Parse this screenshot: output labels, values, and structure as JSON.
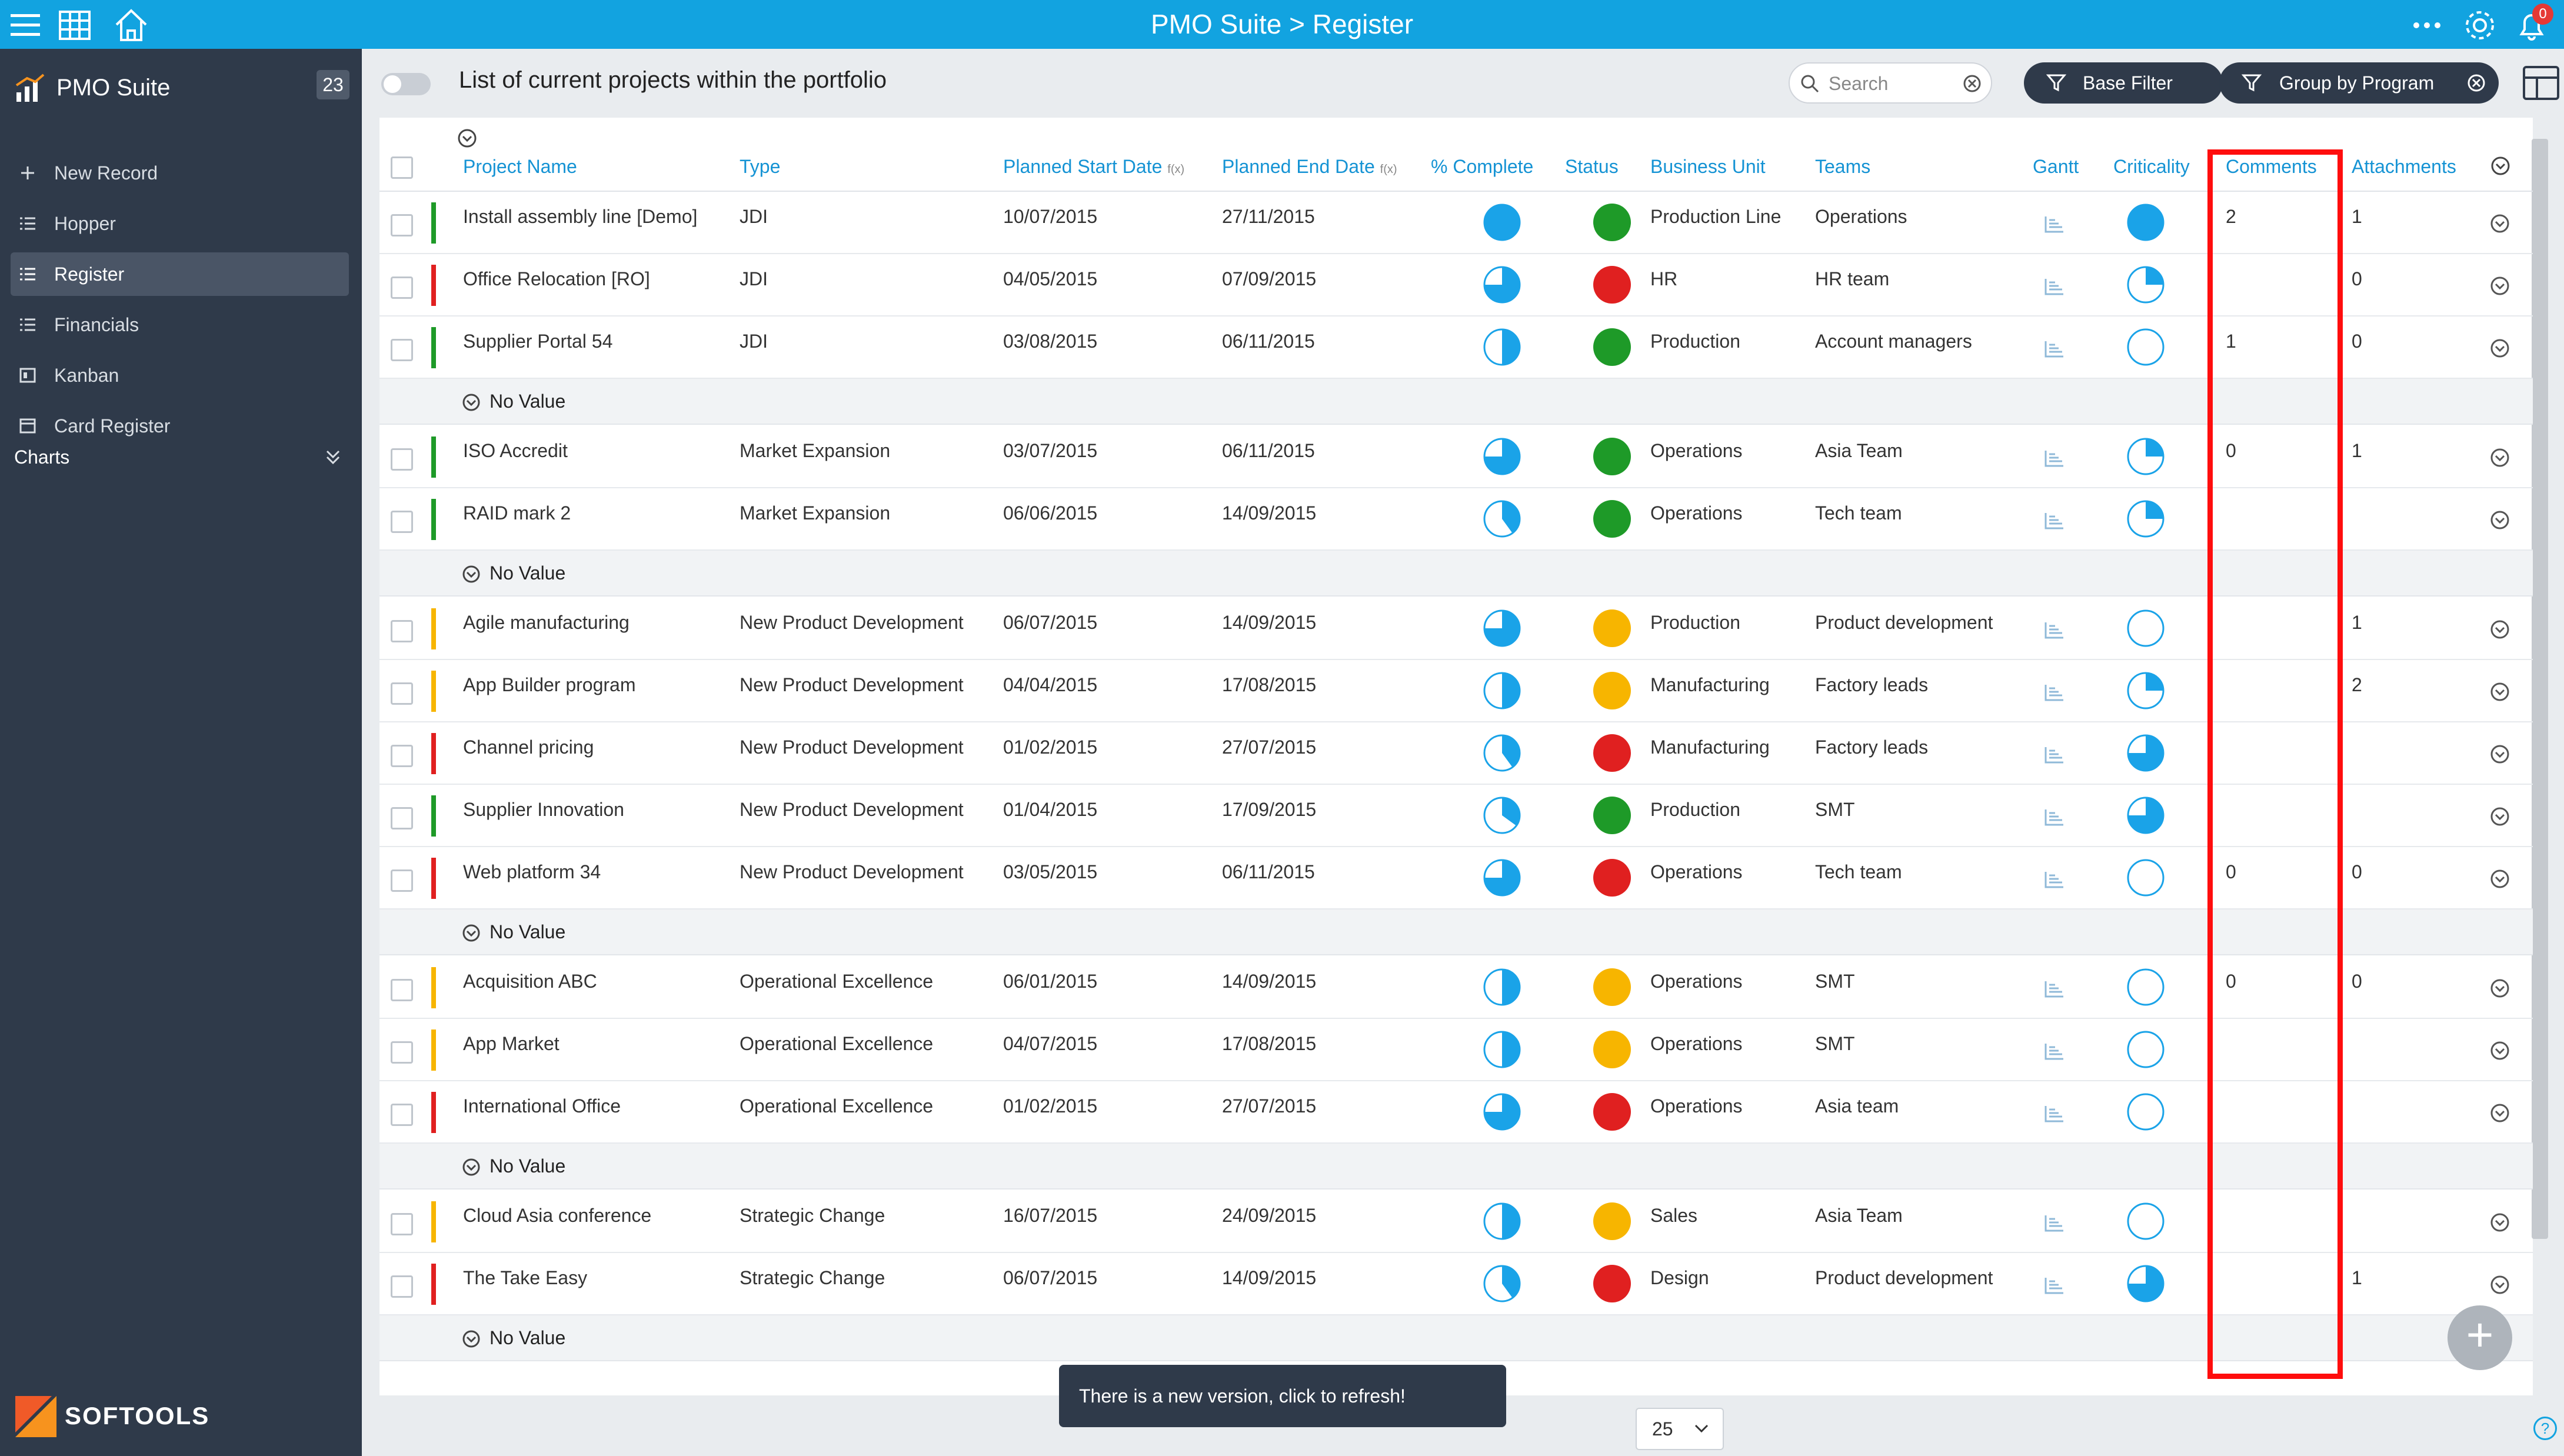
{
  "topbar": {
    "title": "PMO Suite > Register",
    "notifications": "0"
  },
  "sidebar": {
    "app_name": "PMO Suite",
    "count": "23",
    "items": [
      {
        "label": "New Record",
        "icon": "plus-icon"
      },
      {
        "label": "Hopper",
        "icon": "list-icon"
      },
      {
        "label": "Register",
        "icon": "list-icon",
        "active": true
      },
      {
        "label": "Financials",
        "icon": "list-icon"
      },
      {
        "label": "Kanban",
        "icon": "kanban-icon"
      },
      {
        "label": "Card Register",
        "icon": "card-icon"
      }
    ],
    "charts_label": "Charts",
    "brand": "SOFTOOLS"
  },
  "main": {
    "title": "List of current projects within the portfolio",
    "search_placeholder": "Search",
    "base_filter": "Base Filter",
    "group_by": "Group by Program"
  },
  "columns": {
    "project_name": "Project Name",
    "type": "Type",
    "start": "Planned Start Date",
    "end": "Planned End Date",
    "fx": "f(x)",
    "complete": "% Complete",
    "status": "Status",
    "unit": "Business Unit",
    "teams": "Teams",
    "gantt": "Gantt",
    "criticality": "Criticality",
    "comments": "Comments",
    "attachments": "Attachments"
  },
  "group_label": "No Value",
  "colors": {
    "green": "#1e9a28",
    "red": "#e02020",
    "amber": "#f7b500",
    "blue": "#1aa3e8"
  },
  "rows": [
    {
      "name": "Install assembly line [Demo]",
      "type": "JDI",
      "start": "10/07/2015",
      "end": "27/11/2015",
      "bar": "green",
      "complete": 1.0,
      "status": "green",
      "unit": "Production Line",
      "teams": "Operations",
      "crit": 1.0,
      "comments": "2",
      "attachments": "1"
    },
    {
      "name": "Office Relocation [RO]",
      "type": "JDI",
      "start": "04/05/2015",
      "end": "07/09/2015",
      "bar": "red",
      "complete": 0.75,
      "status": "red",
      "unit": "HR",
      "teams": "HR team",
      "crit": 0.25,
      "comments": "",
      "attachments": "0"
    },
    {
      "name": "Supplier Portal 54",
      "type": "JDI",
      "start": "03/08/2015",
      "end": "06/11/2015",
      "bar": "green",
      "complete": 0.5,
      "status": "green",
      "unit": "Production",
      "teams": "Account managers",
      "crit": 0,
      "comments": "1",
      "attachments": "0"
    },
    {
      "group": true
    },
    {
      "name": "ISO Accredit",
      "type": "Market Expansion",
      "start": "03/07/2015",
      "end": "06/11/2015",
      "bar": "green",
      "complete": 0.75,
      "status": "green",
      "unit": "Operations",
      "teams": "Asia Team",
      "crit": 0.25,
      "comments": "0",
      "attachments": "1"
    },
    {
      "name": "RAID mark 2",
      "type": "Market Expansion",
      "start": "06/06/2015",
      "end": "14/09/2015",
      "bar": "green",
      "complete": 0.4,
      "status": "green",
      "unit": "Operations",
      "teams": "Tech team",
      "crit": 0.25,
      "comments": "",
      "attachments": ""
    },
    {
      "group": true
    },
    {
      "name": "Agile manufacturing",
      "type": "New Product Development",
      "start": "06/07/2015",
      "end": "14/09/2015",
      "bar": "amber",
      "complete": 0.75,
      "status": "amber",
      "unit": "Production",
      "teams": "Product development",
      "crit": 0,
      "comments": "",
      "attachments": "1"
    },
    {
      "name": "App Builder program",
      "type": "New Product Development",
      "start": "04/04/2015",
      "end": "17/08/2015",
      "bar": "amber",
      "complete": 0.5,
      "status": "amber",
      "unit": "Manufacturing",
      "teams": "Factory leads",
      "crit": 0.25,
      "comments": "",
      "attachments": "2"
    },
    {
      "name": "Channel pricing",
      "type": "New Product Development",
      "start": "01/02/2015",
      "end": "27/07/2015",
      "bar": "red",
      "complete": 0.4,
      "status": "red",
      "unit": "Manufacturing",
      "teams": "Factory leads",
      "crit": 0.75,
      "comments": "",
      "attachments": ""
    },
    {
      "name": "Supplier Innovation",
      "type": "New Product Development",
      "start": "01/04/2015",
      "end": "17/09/2015",
      "bar": "green",
      "complete": 0.35,
      "status": "green",
      "unit": "Production",
      "teams": "SMT",
      "crit": 0.75,
      "comments": "",
      "attachments": ""
    },
    {
      "name": "Web platform 34",
      "type": "New Product Development",
      "start": "03/05/2015",
      "end": "06/11/2015",
      "bar": "red",
      "complete": 0.75,
      "status": "red",
      "unit": "Operations",
      "teams": "Tech team",
      "crit": 0,
      "comments": "0",
      "attachments": "0"
    },
    {
      "group": true
    },
    {
      "name": "Acquisition ABC",
      "type": "Operational Excellence",
      "start": "06/01/2015",
      "end": "14/09/2015",
      "bar": "amber",
      "complete": 0.5,
      "status": "amber",
      "unit": "Operations",
      "teams": "SMT",
      "crit": 0,
      "comments": "0",
      "attachments": "0"
    },
    {
      "name": "App Market",
      "type": "Operational Excellence",
      "start": "04/07/2015",
      "end": "17/08/2015",
      "bar": "amber",
      "complete": 0.5,
      "status": "amber",
      "unit": "Operations",
      "teams": "SMT",
      "crit": 0,
      "comments": "",
      "attachments": ""
    },
    {
      "name": "International Office",
      "type": "Operational Excellence",
      "start": "01/02/2015",
      "end": "27/07/2015",
      "bar": "red",
      "complete": 0.75,
      "status": "red",
      "unit": "Operations",
      "teams": "Asia team",
      "crit": 0,
      "comments": "",
      "attachments": ""
    },
    {
      "group": true
    },
    {
      "name": "Cloud Asia conference",
      "type": "Strategic Change",
      "start": "16/07/2015",
      "end": "24/09/2015",
      "bar": "amber",
      "complete": 0.5,
      "status": "amber",
      "unit": "Sales",
      "teams": "Asia Team",
      "crit": 0,
      "comments": "",
      "attachments": ""
    },
    {
      "name": "The Take Easy",
      "type": "Strategic Change",
      "start": "06/07/2015",
      "end": "14/09/2015",
      "bar": "red",
      "complete": 0.4,
      "status": "red",
      "unit": "Design",
      "teams": "Product development",
      "crit": 0.75,
      "comments": "",
      "attachments": "1"
    },
    {
      "group": true
    }
  ],
  "footer": {
    "toast": "There is a new version, click to refresh!",
    "page_size": "25"
  }
}
